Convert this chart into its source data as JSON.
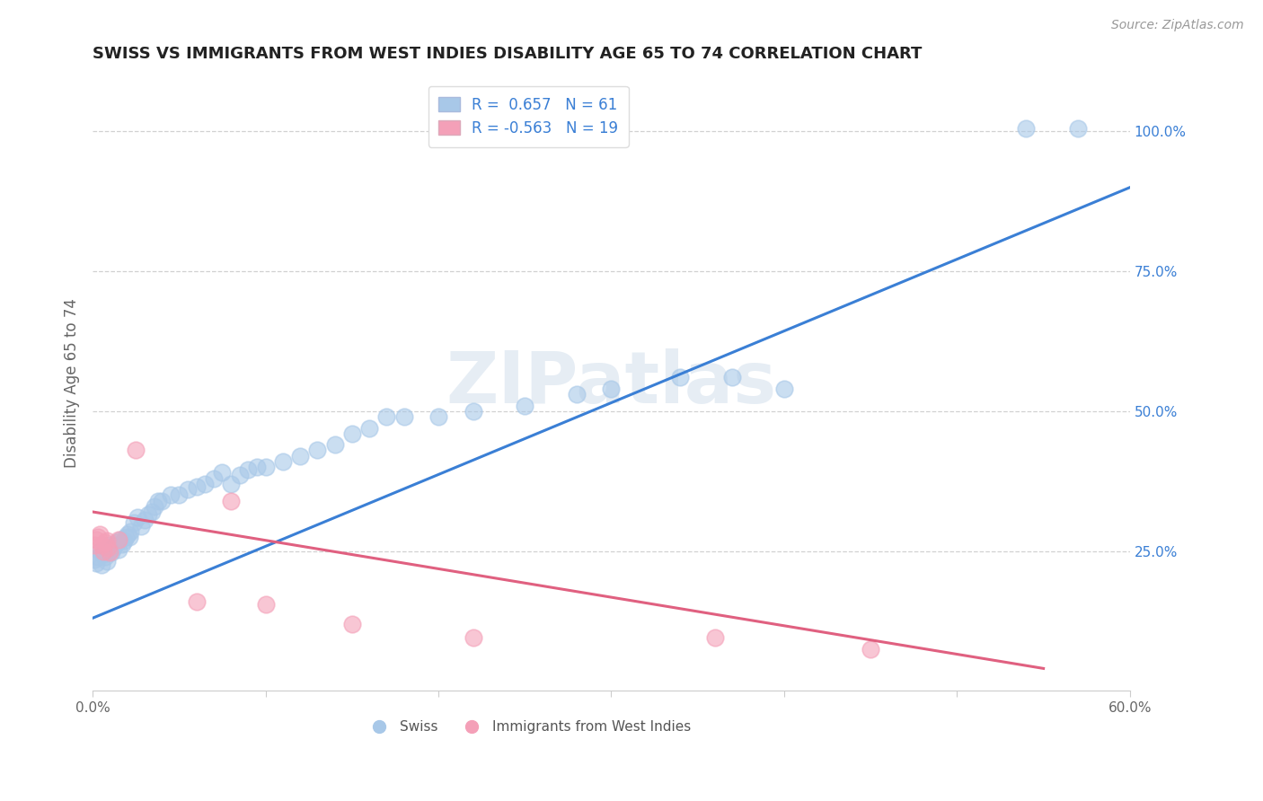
{
  "title": "SWISS VS IMMIGRANTS FROM WEST INDIES DISABILITY AGE 65 TO 74 CORRELATION CHART",
  "source": "Source: ZipAtlas.com",
  "ylabel": "Disability Age 65 to 74",
  "xlim": [
    0.0,
    0.6
  ],
  "ylim": [
    0.0,
    1.1
  ],
  "xticks": [
    0.0,
    0.1,
    0.2,
    0.3,
    0.4,
    0.5,
    0.6
  ],
  "xticklabels": [
    "0.0%",
    "",
    "",
    "",
    "",
    "",
    "60.0%"
  ],
  "yticks_right": [
    0.25,
    0.5,
    0.75,
    1.0
  ],
  "yticklabels_right": [
    "25.0%",
    "50.0%",
    "75.0%",
    "100.0%"
  ],
  "swiss_color": "#a8c8e8",
  "pink_color": "#f4a0b8",
  "blue_line_color": "#3a7fd5",
  "pink_line_color": "#e06080",
  "R_swiss": 0.657,
  "N_swiss": 61,
  "R_pink": -0.563,
  "N_pink": 19,
  "watermark": "ZIPatlas",
  "legend_label_swiss": "Swiss",
  "legend_label_pink": "Immigrants from West Indies",
  "swiss_x": [
    0.001,
    0.002,
    0.003,
    0.004,
    0.005,
    0.006,
    0.007,
    0.008,
    0.009,
    0.01,
    0.011,
    0.012,
    0.013,
    0.014,
    0.015,
    0.016,
    0.017,
    0.018,
    0.019,
    0.02,
    0.021,
    0.022,
    0.024,
    0.026,
    0.028,
    0.03,
    0.032,
    0.034,
    0.036,
    0.038,
    0.04,
    0.045,
    0.05,
    0.055,
    0.06,
    0.065,
    0.07,
    0.075,
    0.08,
    0.085,
    0.09,
    0.095,
    0.1,
    0.11,
    0.12,
    0.13,
    0.14,
    0.15,
    0.16,
    0.17,
    0.18,
    0.2,
    0.22,
    0.25,
    0.28,
    0.3,
    0.34,
    0.37,
    0.4,
    0.54,
    0.57
  ],
  "swiss_y": [
    0.235,
    0.228,
    0.24,
    0.25,
    0.225,
    0.245,
    0.24,
    0.232,
    0.25,
    0.26,
    0.248,
    0.255,
    0.26,
    0.265,
    0.252,
    0.27,
    0.262,
    0.268,
    0.275,
    0.28,
    0.275,
    0.285,
    0.3,
    0.31,
    0.295,
    0.305,
    0.315,
    0.32,
    0.33,
    0.34,
    0.34,
    0.35,
    0.35,
    0.36,
    0.365,
    0.37,
    0.38,
    0.39,
    0.37,
    0.385,
    0.395,
    0.4,
    0.4,
    0.41,
    0.42,
    0.43,
    0.44,
    0.46,
    0.47,
    0.49,
    0.49,
    0.49,
    0.5,
    0.51,
    0.53,
    0.54,
    0.56,
    0.56,
    0.54,
    1.005,
    1.005
  ],
  "pink_x": [
    0.001,
    0.002,
    0.003,
    0.004,
    0.005,
    0.006,
    0.007,
    0.008,
    0.009,
    0.01,
    0.015,
    0.025,
    0.06,
    0.08,
    0.1,
    0.15,
    0.22,
    0.36,
    0.45
  ],
  "pink_y": [
    0.26,
    0.27,
    0.275,
    0.28,
    0.26,
    0.25,
    0.265,
    0.268,
    0.255,
    0.248,
    0.27,
    0.43,
    0.16,
    0.34,
    0.155,
    0.12,
    0.095,
    0.095,
    0.075
  ],
  "blue_line_x": [
    0.0,
    0.6
  ],
  "blue_line_y": [
    0.13,
    0.9
  ],
  "pink_line_x": [
    0.0,
    0.55
  ],
  "pink_line_y": [
    0.32,
    0.04
  ]
}
